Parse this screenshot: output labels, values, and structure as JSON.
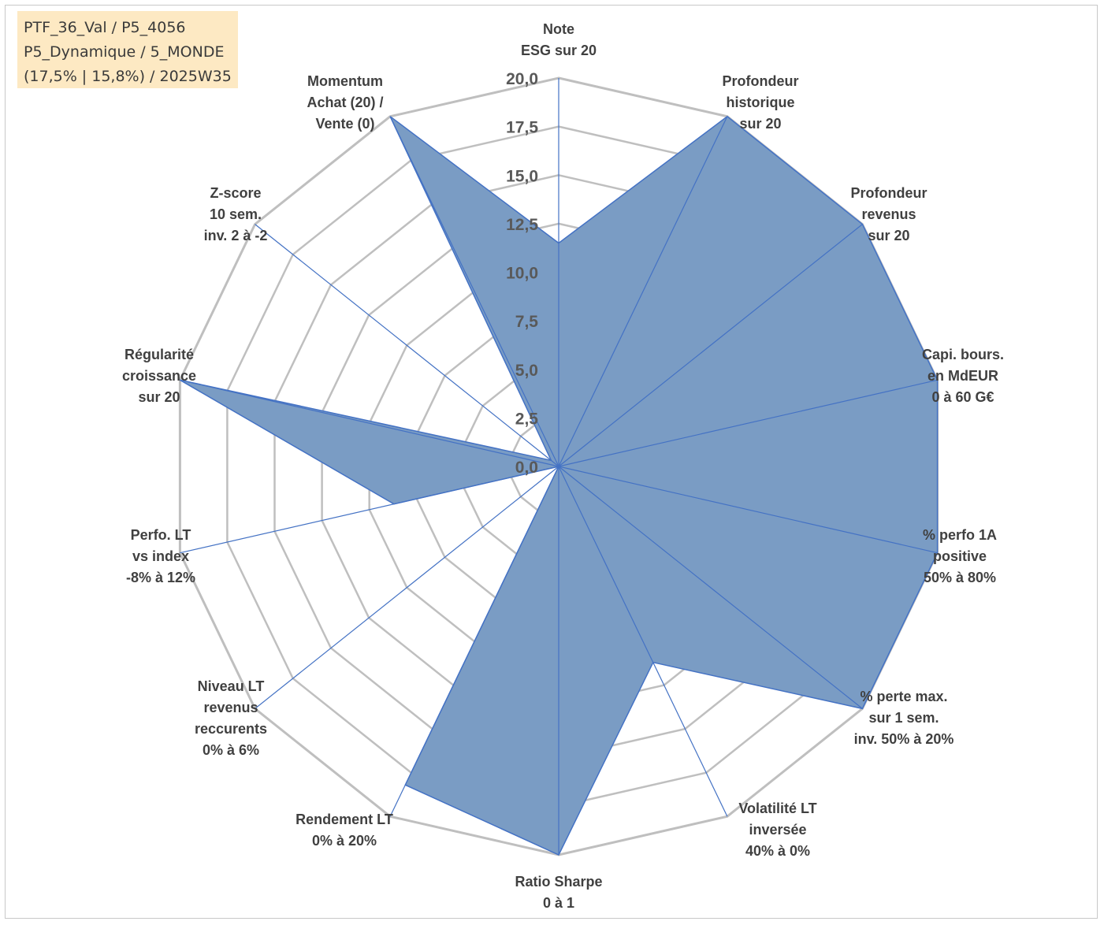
{
  "info_box": {
    "lines": [
      "PTF_36_Val / P5_4056",
      "P5_Dynamique / 5_MONDE",
      "(17,5% | 15,8%) / 2025W35"
    ]
  },
  "chart_data": {
    "type": "radar",
    "title": "",
    "rmin": 0,
    "rmax": 20,
    "ticks": [
      "0,0",
      "2,5",
      "5,0",
      "7,5",
      "10,0",
      "12,5",
      "15,0",
      "17,5",
      "20,0"
    ],
    "tick_values": [
      0,
      2.5,
      5,
      7.5,
      10,
      12.5,
      15,
      17.5,
      20
    ],
    "axes": [
      {
        "label": [
          "Note",
          "ESG sur 20"
        ],
        "value": 11.5
      },
      {
        "label": [
          "Profondeur",
          "historique",
          "sur 20"
        ],
        "value": 20
      },
      {
        "label": [
          "Profondeur",
          "revenus",
          "sur 20"
        ],
        "value": 20
      },
      {
        "label": [
          "Capi. bours.",
          "en MdEUR",
          "0 à 60 G€"
        ],
        "value": 20
      },
      {
        "label": [
          "% perfo 1A",
          "positive",
          "50% à 80%"
        ],
        "value": 20
      },
      {
        "label": [
          "% perte max.",
          "sur 1 sem.",
          "inv. 50% à 20%"
        ],
        "value": 20
      },
      {
        "label": [
          "Volatilité LT",
          "inversée",
          "40% à 0%"
        ],
        "value": 11.2
      },
      {
        "label": [
          "Ratio Sharpe",
          "0 à 1"
        ],
        "value": 20
      },
      {
        "label": [
          "Rendement LT",
          "0% à 20%"
        ],
        "value": 18.2
      },
      {
        "label": [
          "Niveau LT",
          "revenus",
          "reccurents",
          "0% à 6%"
        ],
        "value": 0
      },
      {
        "label": [
          "Perfo. LT",
          "vs index",
          "-8% à 12%"
        ],
        "value": 8.7
      },
      {
        "label": [
          "Régularité",
          "croissance",
          "sur 20"
        ],
        "value": 20
      },
      {
        "label": [
          "Z-score",
          "10 sem.",
          "inv. 2 à -2"
        ],
        "value": 0.5
      },
      {
        "label": [
          "Momentum",
          "Achat (20) /",
          "Vente (0)"
        ],
        "value": 20
      }
    ],
    "series": [
      {
        "values": [
          11.5,
          20,
          20,
          20,
          20,
          20,
          11.2,
          20,
          18.2,
          0,
          8.7,
          20,
          0.5,
          20
        ]
      }
    ],
    "colors": {
      "fill": "#7a9cc4",
      "stroke": "#4472c4",
      "grid": "#bfbfbf",
      "spoke": "#4472c4"
    },
    "grid": true,
    "legend": "none"
  }
}
